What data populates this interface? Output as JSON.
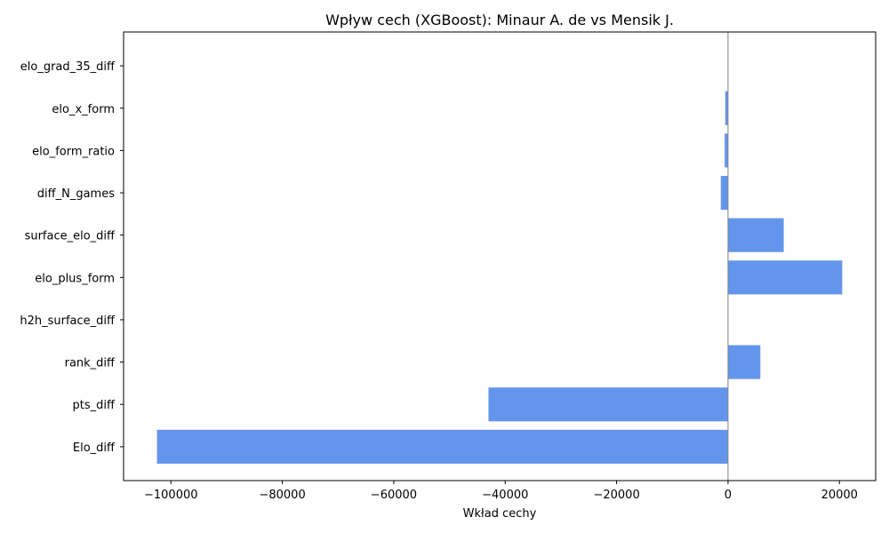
{
  "chart_data": {
    "type": "bar",
    "orientation": "horizontal",
    "title": "Wpływ cech (XGBoost): Minaur A. de vs Mensik J.",
    "xlabel": "Wkład cechy",
    "ylabel": "",
    "categories": [
      "elo_grad_35_diff",
      "elo_x_form",
      "elo_form_ratio",
      "diff_N_games",
      "surface_elo_diff",
      "elo_plus_form",
      "h2h_surface_diff",
      "rank_diff",
      "pts_diff",
      "Elo_diff"
    ],
    "values": [
      0,
      -500,
      -600,
      -1300,
      10000,
      20500,
      0,
      5800,
      -43000,
      -102500
    ],
    "xlim": [
      -108500,
      26500
    ],
    "xticks": [
      -100000,
      -80000,
      -60000,
      -40000,
      -20000,
      0,
      20000
    ],
    "xtick_labels": [
      "−100000",
      "−80000",
      "−60000",
      "−40000",
      "−20000",
      "0",
      "20000"
    ],
    "bar_color": "#6495ED",
    "zero_line": true,
    "grid": false,
    "legend": "none"
  }
}
